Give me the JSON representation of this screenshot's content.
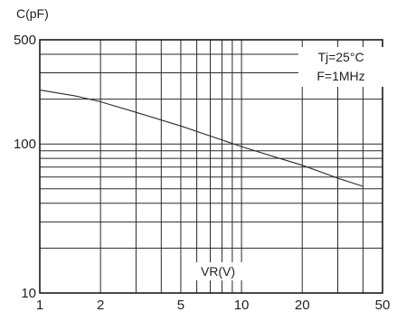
{
  "chart_data": {
    "type": "line",
    "x_scale": "log",
    "y_scale": "log",
    "xlim": [
      1,
      50
    ],
    "ylim": [
      10,
      500
    ],
    "x_ticks": [
      1,
      2,
      5,
      10,
      20,
      50
    ],
    "y_ticks": [
      10,
      100,
      500
    ],
    "x_tick_labels": [
      "1",
      "2",
      "5",
      "10",
      "20",
      "50"
    ],
    "y_tick_labels": [
      "10",
      "100",
      "500"
    ],
    "xlabel": "VR(V)",
    "ylabel": "C(pF)",
    "grid": true,
    "annotations": [
      "Tj=25°C",
      "F=1MHz"
    ],
    "series": [
      {
        "x": [
          1,
          1.5,
          2,
          3,
          5,
          7,
          10,
          15,
          20,
          30,
          40
        ],
        "y": [
          230,
          210,
          192,
          163,
          132,
          113,
          96,
          81,
          72,
          59,
          52
        ]
      }
    ]
  }
}
